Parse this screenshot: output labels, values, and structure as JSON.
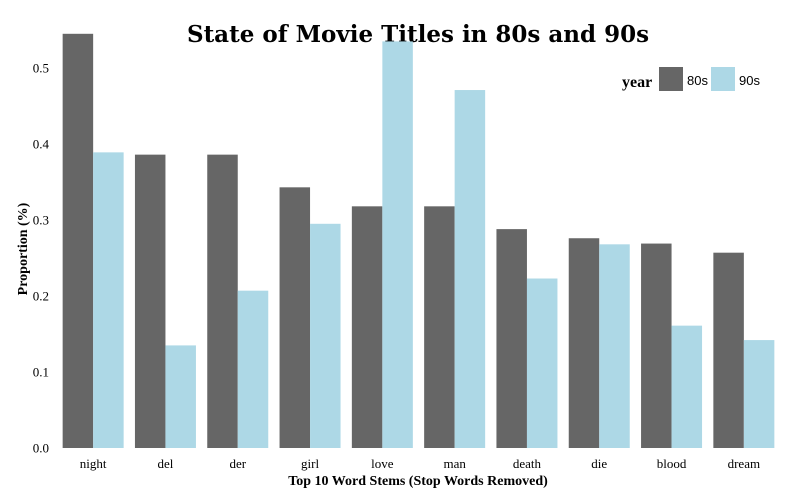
{
  "chart_data": {
    "type": "bar",
    "title": "State of Movie Titles in 80s and 90s",
    "xlabel": "Top 10 Word Stems (Stop Words Removed)",
    "ylabel": "Proportion (%)",
    "ylim": [
      0,
      0.55
    ],
    "yticks": [
      "0.0",
      "0.1",
      "0.2",
      "0.3",
      "0.4",
      "0.5"
    ],
    "categories": [
      "night",
      "del",
      "der",
      "girl",
      "love",
      "man",
      "death",
      "die",
      "blood",
      "dream"
    ],
    "legend": {
      "title": "year",
      "placement": "top-right"
    },
    "grid": false,
    "series": [
      {
        "name": "80s",
        "color": "#666666",
        "values": [
          0.545,
          0.386,
          0.386,
          0.343,
          0.318,
          0.318,
          0.288,
          0.276,
          0.269,
          0.257
        ]
      },
      {
        "name": "90s",
        "color": "#add8e6",
        "values": [
          0.389,
          0.135,
          0.207,
          0.295,
          0.535,
          0.471,
          0.223,
          0.268,
          0.161,
          0.142
        ]
      }
    ]
  }
}
